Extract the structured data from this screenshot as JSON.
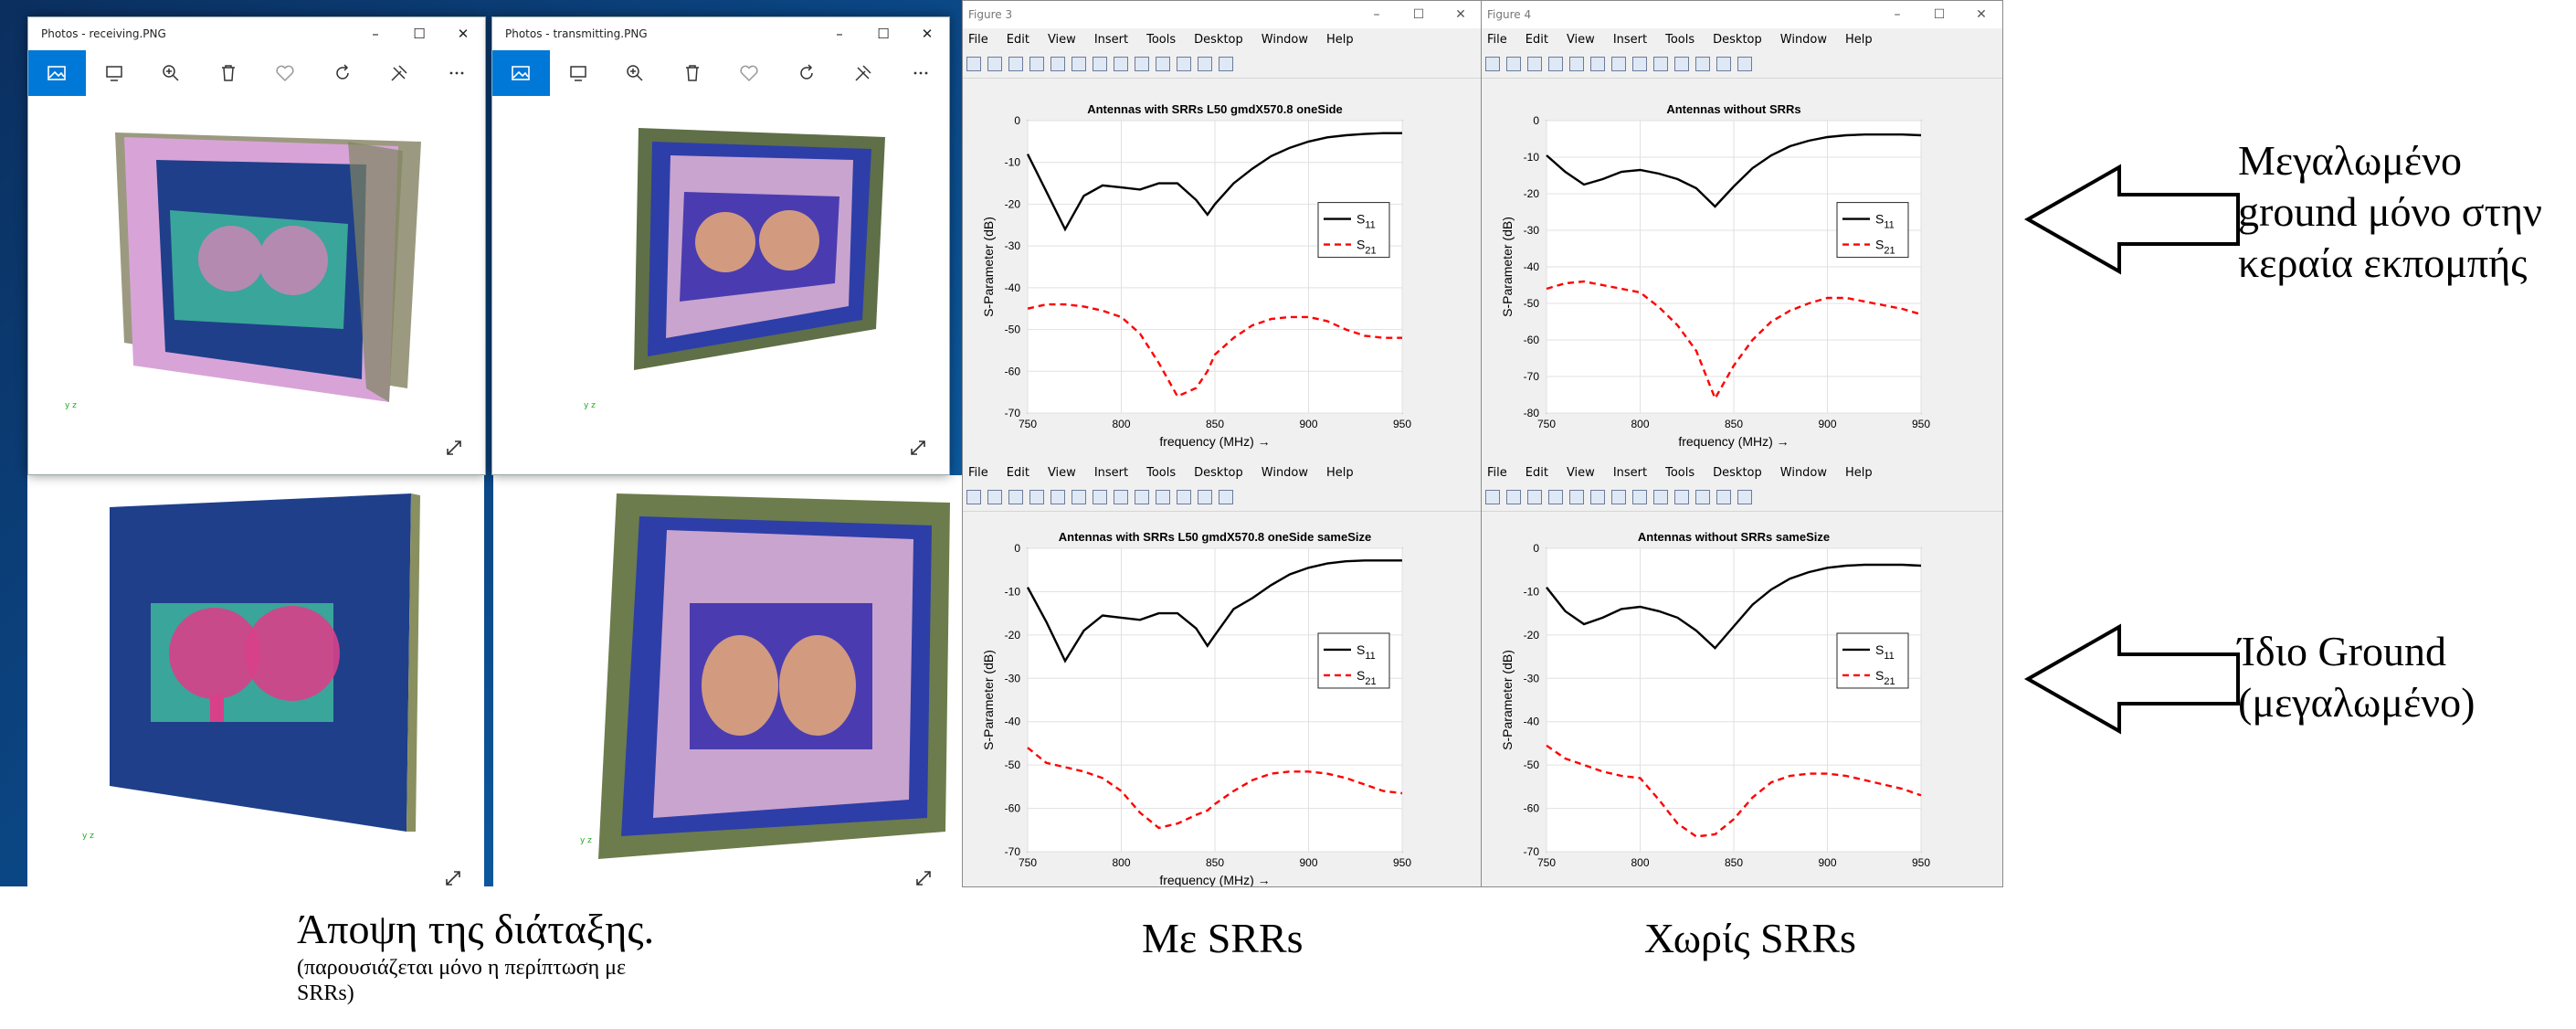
{
  "windows": [
    {
      "title": "Photos - receiving.PNG",
      "controls": [
        "–",
        "☐",
        "✕"
      ]
    },
    {
      "title": "Photos - transmitting.PNG",
      "controls": [
        "–",
        "☐",
        "✕"
      ]
    }
  ],
  "photo_toolbar": [
    "image-icon",
    "slideshow-icon",
    "zoom-icon",
    "delete-icon",
    "heart-icon",
    "rotate-icon",
    "edit-icon",
    "more-icon"
  ],
  "figures": [
    {
      "title": "Figure 3",
      "menus": [
        "File",
        "Edit",
        "View",
        "Insert",
        "Tools",
        "Desktop",
        "Window",
        "Help"
      ]
    },
    {
      "title": "Figure 4",
      "menus": [
        "File",
        "Edit",
        "View",
        "Insert",
        "Tools",
        "Desktop",
        "Window",
        "Help"
      ]
    }
  ],
  "chart_data": [
    {
      "type": "line",
      "title": "Antennas with SRRs L50 gmdX570.8 oneSide",
      "xlabel": "frequency (MHz) →",
      "ylabel": "S-Parameter (dB)",
      "xlim": [
        750,
        950
      ],
      "ylim": [
        -70,
        0
      ],
      "xticks": [
        "750",
        "800",
        "850",
        "900",
        "950"
      ],
      "yticks": [
        "0",
        "-10",
        "-20",
        "-30",
        "-40",
        "-50",
        "-60",
        "-70"
      ],
      "x": [
        750,
        760,
        770,
        780,
        790,
        800,
        810,
        820,
        830,
        840,
        846,
        850,
        860,
        870,
        880,
        890,
        900,
        910,
        920,
        930,
        940,
        950
      ],
      "series": [
        {
          "name": "S11",
          "values": [
            -8,
            -17,
            -26,
            -18,
            -15.5,
            -16,
            -16.5,
            -15,
            -15,
            -19,
            -22.5,
            -20,
            -15,
            -11.5,
            -8.5,
            -6.5,
            -5,
            -4,
            -3.5,
            -3.2,
            -3,
            -3
          ]
        },
        {
          "name": "S21",
          "values": [
            -45,
            -44,
            -44,
            -44.5,
            -45.5,
            -47,
            -51,
            -58,
            -66,
            -64,
            -60,
            -56,
            -52,
            -49,
            -47.5,
            -47,
            -47,
            -48,
            -50,
            -51.5,
            -52,
            -52
          ]
        }
      ],
      "legend": [
        "S11",
        "S21"
      ],
      "legend_position": "right"
    },
    {
      "type": "line",
      "title": "Antennas without SRRs",
      "xlabel": "frequency (MHz) →",
      "ylabel": "S-Parameter (dB)",
      "xlim": [
        750,
        950
      ],
      "ylim": [
        -80,
        0
      ],
      "xticks": [
        "750",
        "800",
        "850",
        "900",
        "950"
      ],
      "yticks": [
        "0",
        "-10",
        "-20",
        "-30",
        "-40",
        "-50",
        "-60",
        "-70",
        "-80"
      ],
      "x": [
        750,
        760,
        770,
        780,
        790,
        800,
        810,
        820,
        830,
        840,
        850,
        860,
        870,
        880,
        890,
        900,
        910,
        920,
        930,
        940,
        950
      ],
      "series": [
        {
          "name": "S11",
          "values": [
            -9.5,
            -14,
            -17.5,
            -16,
            -14,
            -13.5,
            -14.5,
            -16,
            -18.5,
            -23.5,
            -18,
            -13,
            -9.5,
            -7,
            -5.5,
            -4.5,
            -4,
            -3.8,
            -3.8,
            -3.8,
            -4
          ]
        },
        {
          "name": "S21",
          "values": [
            -46,
            -44.5,
            -44,
            -45,
            -46,
            -47,
            -51,
            -56,
            -63,
            -76,
            -67,
            -60,
            -55,
            -52,
            -50,
            -48.5,
            -48.5,
            -49.5,
            -50.5,
            -51.5,
            -53
          ]
        }
      ],
      "legend": [
        "S11",
        "S21"
      ],
      "legend_position": "right"
    },
    {
      "type": "line",
      "title": "Antennas with SRRs L50 gmdX570.8 oneSide sameSize",
      "xlabel": "frequency (MHz) →",
      "ylabel": "S-Parameter (dB)",
      "xlim": [
        750,
        950
      ],
      "ylim": [
        -70,
        0
      ],
      "xticks": [
        "750",
        "800",
        "850",
        "900",
        "950"
      ],
      "yticks": [
        "0",
        "-10",
        "-20",
        "-30",
        "-40",
        "-50",
        "-60",
        "-70"
      ],
      "x": [
        750,
        760,
        770,
        780,
        790,
        800,
        810,
        820,
        830,
        840,
        846,
        850,
        860,
        870,
        880,
        890,
        900,
        910,
        920,
        930,
        940,
        950
      ],
      "series": [
        {
          "name": "S11",
          "values": [
            -9,
            -17,
            -26,
            -19,
            -15.5,
            -16,
            -16.5,
            -15,
            -15,
            -18.5,
            -22.5,
            -20,
            -14,
            -11.5,
            -8.5,
            -6,
            -4.5,
            -3.5,
            -3,
            -2.8,
            -2.8,
            -2.8
          ]
        },
        {
          "name": "S21",
          "values": [
            -46,
            -49.5,
            -50.5,
            -51.5,
            -53,
            -56,
            -61,
            -64.5,
            -63.5,
            -61.5,
            -60.5,
            -59,
            -56,
            -53.5,
            -52,
            -51.5,
            -51.5,
            -52,
            -53,
            -54.5,
            -56,
            -56.5
          ]
        }
      ],
      "legend": [
        "S11",
        "S21"
      ],
      "legend_position": "right"
    },
    {
      "type": "line",
      "title": "Antennas without SRRs sameSize",
      "xlabel": "",
      "ylabel": "S-Parameter (dB)",
      "xlim": [
        750,
        950
      ],
      "ylim": [
        -70,
        0
      ],
      "xticks": [
        "750",
        "800",
        "850",
        "900",
        "950"
      ],
      "yticks": [
        "0",
        "-10",
        "-20",
        "-30",
        "-40",
        "-50",
        "-60",
        "-70"
      ],
      "x": [
        750,
        760,
        770,
        780,
        790,
        800,
        810,
        820,
        830,
        840,
        850,
        860,
        870,
        880,
        890,
        900,
        910,
        920,
        930,
        940,
        950
      ],
      "series": [
        {
          "name": "S11",
          "values": [
            -9,
            -14.5,
            -17.5,
            -16,
            -14,
            -13.5,
            -14.5,
            -16,
            -19,
            -23,
            -18,
            -13,
            -9.5,
            -7,
            -5.5,
            -4.5,
            -4,
            -3.8,
            -3.8,
            -3.8,
            -4
          ]
        },
        {
          "name": "S21",
          "values": [
            -45.5,
            -48.5,
            -50,
            -51.5,
            -52.5,
            -53,
            -58,
            -63.5,
            -66.5,
            -66,
            -62.5,
            -57.5,
            -54,
            -52.5,
            -52,
            -52,
            -52.5,
            -53.5,
            -54.5,
            -55.5,
            -57
          ]
        }
      ],
      "legend": [
        "S11",
        "S21"
      ],
      "legend_position": "right"
    }
  ],
  "colors": {
    "s11": "#000000",
    "s21": "#ff0000",
    "accent": "#0078d7"
  },
  "annotations": {
    "right_top": [
      "Μεγαλωμένο",
      "ground μόνο στην",
      "κεραία εκπομπής"
    ],
    "right_bottom": [
      "Ίδιο Ground",
      "(μεγαλωμένο)"
    ],
    "caption_view": "Άποψη της διάταξης.",
    "caption_view_sub1": "(παρουσιάζεται μόνο η περίπτωση με",
    "caption_view_sub2": "SRRs)",
    "caption_with": "Με SRRs",
    "caption_without": "Χωρίς SRRs"
  }
}
